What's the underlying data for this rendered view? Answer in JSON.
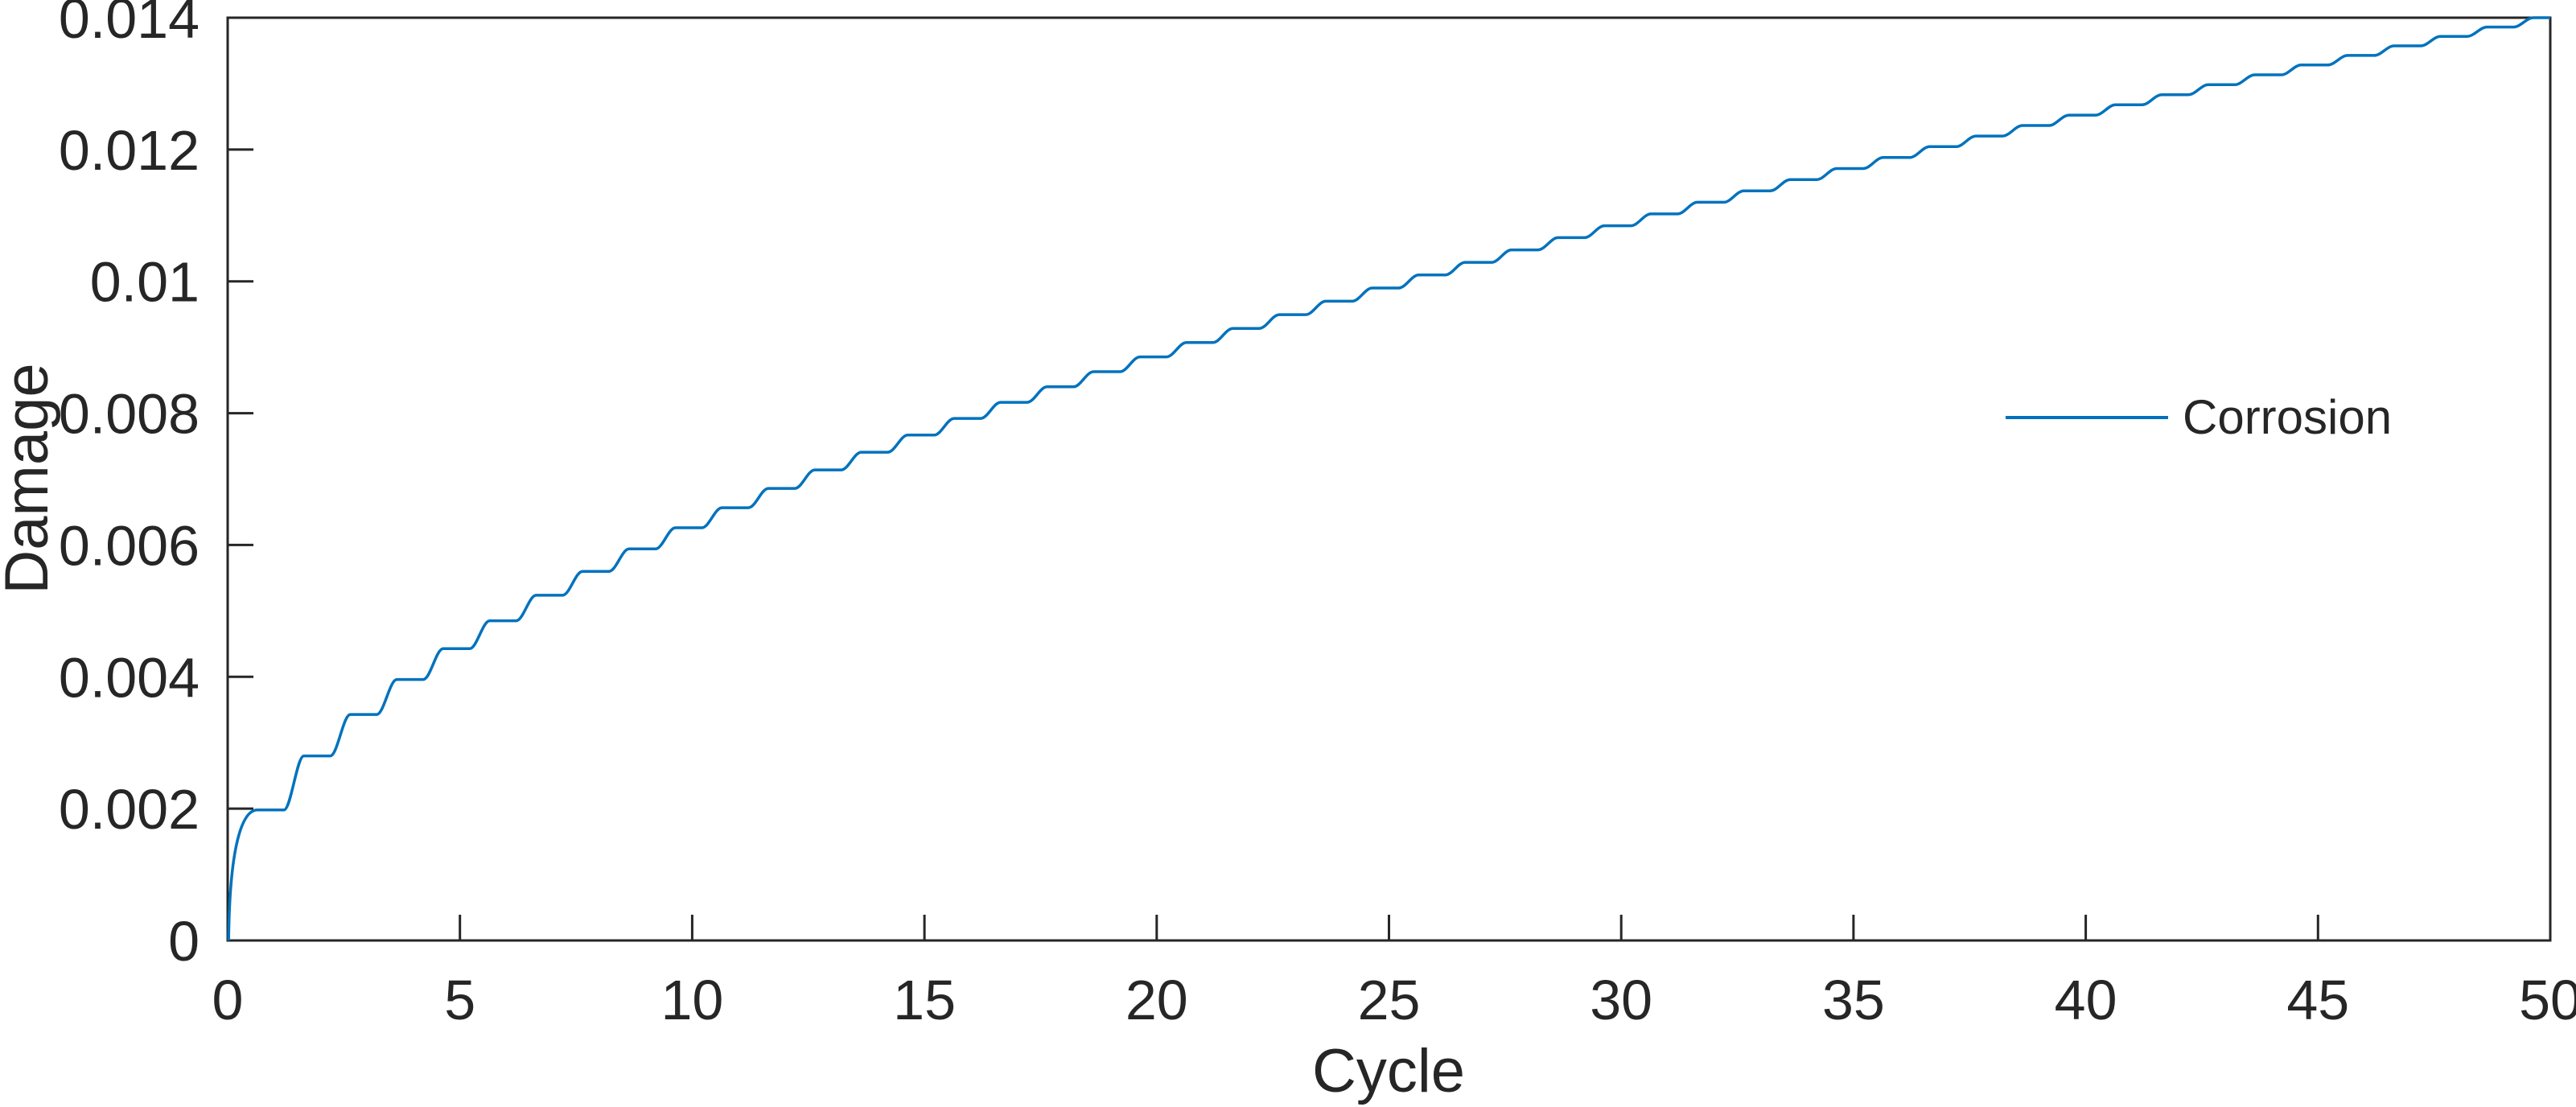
{
  "figure": {
    "background": "#ffffff"
  },
  "chart_data": {
    "type": "line",
    "title": "",
    "xlabel": "Cycle",
    "ylabel": "Damage",
    "xlim": [
      0,
      50
    ],
    "ylim": [
      0,
      0.014
    ],
    "xticks": [
      0,
      5,
      10,
      15,
      20,
      25,
      30,
      35,
      40,
      45,
      50
    ],
    "xtick_labels": [
      "0",
      "5",
      "10",
      "15",
      "20",
      "25",
      "30",
      "35",
      "40",
      "45",
      "50"
    ],
    "yticks": [
      0,
      0.002,
      0.004,
      0.006,
      0.008,
      0.01,
      0.012,
      0.014
    ],
    "ytick_labels": [
      "0",
      "0.002",
      "0.004",
      "0.006",
      "0.008",
      "0.01",
      "0.012",
      "0.014"
    ],
    "grid": false,
    "box": true,
    "tick_direction": "in",
    "axis_color": "#262626",
    "legend": {
      "position": "right-inside",
      "box": false,
      "entries": [
        {
          "label": "Corrosion",
          "color": "#0072BD"
        }
      ]
    },
    "series": [
      {
        "name": "Corrosion",
        "color": "#0072BD",
        "style": "ramp-plateau-per-cycle",
        "ramp_start_frac": 0.21,
        "ramp_end_frac": 0.64,
        "first_ramp_start": 0.02,
        "x_cycles": [
          0,
          1,
          2,
          3,
          4,
          5,
          6,
          7,
          8,
          9,
          10,
          11,
          12,
          13,
          14,
          15,
          16,
          17,
          18,
          19,
          20,
          21,
          22,
          23,
          24,
          25,
          26,
          27,
          28,
          29,
          30,
          31,
          32,
          33,
          34,
          35,
          36,
          37,
          38,
          39,
          40,
          41,
          42,
          43,
          44,
          45,
          46,
          47,
          48,
          49,
          50
        ],
        "values": [
          0,
          0.00198,
          0.0028,
          0.003429,
          0.00396,
          0.004427,
          0.00485,
          0.005238,
          0.0056,
          0.00594,
          0.006261,
          0.006566,
          0.006859,
          0.007139,
          0.007408,
          0.007668,
          0.00792,
          0.008164,
          0.0084,
          0.00863,
          0.008854,
          0.009073,
          0.009286,
          0.009495,
          0.009699,
          0.009899,
          0.010096,
          0.010288,
          0.010477,
          0.010663,
          0.010844,
          0.011023,
          0.0112,
          0.011373,
          0.011544,
          0.011712,
          0.011879,
          0.012043,
          0.012205,
          0.012365,
          0.012522,
          0.012678,
          0.012832,
          0.012983,
          0.013133,
          0.013282,
          0.013428,
          0.013573,
          0.013717,
          0.013859,
          0.014
        ]
      }
    ]
  }
}
